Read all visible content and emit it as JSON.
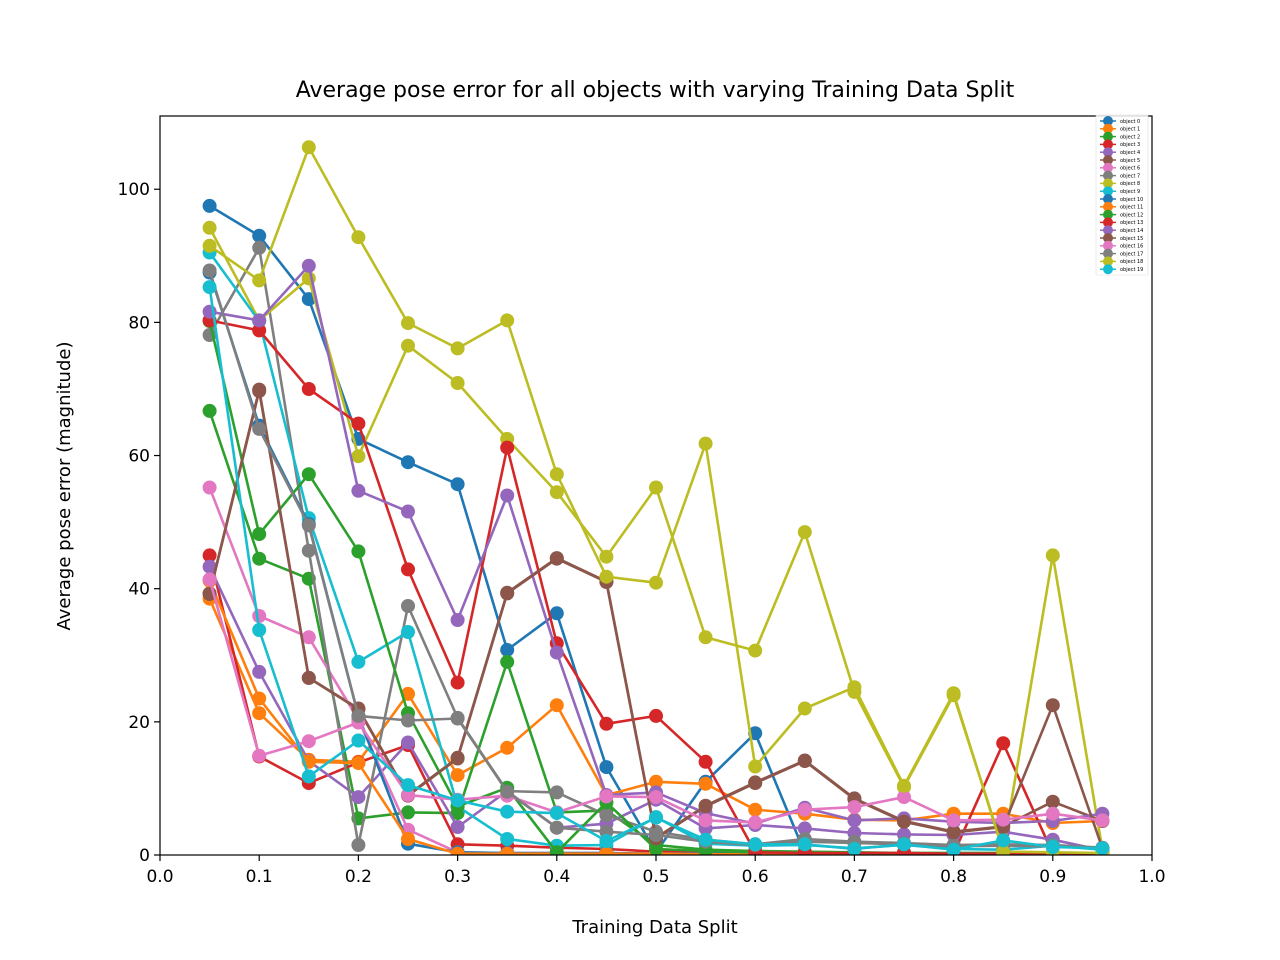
{
  "chart_data": {
    "type": "line",
    "title": "Average pose error for all objects with varying Training Data Split",
    "xlabel": "Training Data Split",
    "ylabel": "Average pose error (magnitude)",
    "xlim": [
      0.0,
      1.0
    ],
    "ylim": [
      0,
      111
    ],
    "xticks": [
      "0.0",
      "0.1",
      "0.2",
      "0.3",
      "0.4",
      "0.5",
      "0.6",
      "0.7",
      "0.8",
      "0.9",
      "1.0"
    ],
    "yticks": [
      "0",
      "20",
      "40",
      "60",
      "80",
      "100"
    ],
    "grid": false,
    "legend_position": "top-right",
    "x": [
      0.05,
      0.1,
      0.15,
      0.2,
      0.25,
      0.3,
      0.35,
      0.4,
      0.45,
      0.5,
      0.55,
      0.6,
      0.65,
      0.7,
      0.75,
      0.8,
      0.85,
      0.9,
      0.95
    ],
    "series": [
      {
        "name": "object 0",
        "color": "#1f77b4",
        "values": [
          97.5,
          93.0,
          83.5,
          62.5,
          59.0,
          55.7,
          30.8,
          36.3,
          13.2,
          0.4,
          11.0,
          18.3,
          0.3,
          0.3,
          0.2,
          0.2,
          0.2,
          0.2,
          0.1
        ]
      },
      {
        "name": "object 1",
        "color": "#ff7f0e",
        "values": [
          38.5,
          21.3,
          14.3,
          14.0,
          24.2,
          12.0,
          16.1,
          22.5,
          9.0,
          11.0,
          10.7,
          6.8,
          6.2,
          5.3,
          5.2,
          6.2,
          6.2,
          4.8,
          5.1
        ]
      },
      {
        "name": "object 2",
        "color": "#2ca02c",
        "values": [
          66.7,
          44.5,
          41.5,
          5.5,
          6.4,
          6.3,
          29.0,
          6.4,
          6.7,
          1.5,
          0.8,
          0.6,
          0.5,
          0.4,
          0.3,
          0.3,
          0.3,
          0.3,
          0.2
        ]
      },
      {
        "name": "object 3",
        "color": "#d62728",
        "values": [
          45.0,
          14.8,
          10.8,
          13.9,
          16.5,
          1.6,
          1.4,
          1.1,
          0.9,
          0.5,
          0.5,
          0.4,
          0.3,
          0.3,
          0.3,
          0.2,
          16.8,
          0.2,
          0.2
        ]
      },
      {
        "name": "object 4",
        "color": "#9467bd",
        "values": [
          43.3,
          27.5,
          14.1,
          8.7,
          16.9,
          4.2,
          9.6,
          4.1,
          4.7,
          8.3,
          4.0,
          4.5,
          4.0,
          3.3,
          3.1,
          3.0,
          3.5,
          2.3,
          0.7
        ]
      },
      {
        "name": "object 5",
        "color": "#8c564b",
        "values": [
          39.3,
          69.9,
          26.6,
          22.0,
          9.0,
          14.6,
          39.4,
          44.6,
          41.1,
          2.6,
          7.4,
          10.9,
          14.2,
          8.5,
          5.1,
          3.5,
          4.3,
          8.0,
          5.1
        ]
      },
      {
        "name": "object 6",
        "color": "#e377c2",
        "values": [
          55.2,
          35.9,
          32.7,
          20.3,
          3.8,
          0.4,
          0.3,
          0.3,
          0.3,
          0.2,
          0.2,
          0.2,
          0.2,
          0.2,
          0.2,
          0.2,
          0.2,
          0.2,
          0.1
        ]
      },
      {
        "name": "object 7",
        "color": "#7f7f7f",
        "values": [
          78.1,
          91.2,
          45.7,
          1.5,
          37.4,
          20.6,
          9.6,
          9.4,
          6.0,
          3.5,
          2.3,
          1.6,
          2.4,
          2.0,
          1.8,
          1.5,
          1.6,
          1.5,
          1.1
        ]
      },
      {
        "name": "object 8",
        "color": "#bcbd22",
        "values": [
          94.2,
          80.3,
          86.6,
          59.9,
          76.5,
          70.9,
          62.5,
          54.5,
          44.8,
          55.2,
          32.7,
          30.7,
          48.5,
          24.5,
          10.2,
          24.0,
          0.8,
          45.0,
          0.8
        ]
      },
      {
        "name": "object 9",
        "color": "#17becf",
        "values": [
          90.5,
          80.2,
          50.6,
          29.0,
          33.5,
          7.3,
          2.4,
          1.4,
          1.5,
          5.7,
          1.7,
          1.4,
          1.5,
          1.0,
          1.5,
          0.9,
          0.8,
          1.4,
          0.8
        ]
      },
      {
        "name": "object 10",
        "color": "#1f77b4",
        "values": [
          87.5,
          64.5,
          49.7,
          20.9,
          1.7,
          0.4,
          0.3,
          0.3,
          0.3,
          0.2,
          0.2,
          0.2,
          0.2,
          0.2,
          0.2,
          0.1,
          0.1,
          0.1,
          0.1
        ]
      },
      {
        "name": "object 11",
        "color": "#ff7f0e",
        "values": [
          41.2,
          23.5,
          14.0,
          13.8,
          2.4,
          0.2,
          0.2,
          0.2,
          0.2,
          0.2,
          0.1,
          0.1,
          0.1,
          0.1,
          0.1,
          0.1,
          0.1,
          0.1,
          0.1
        ]
      },
      {
        "name": "object 12",
        "color": "#2ca02c",
        "values": [
          80.2,
          48.2,
          57.2,
          45.6,
          21.3,
          7.3,
          10.1,
          0.4,
          7.9,
          0.9,
          0.6,
          0.4,
          0.4,
          0.3,
          0.3,
          0.3,
          0.3,
          0.2,
          0.2
        ]
      },
      {
        "name": "object 13",
        "color": "#d62728",
        "values": [
          80.3,
          78.8,
          70.0,
          64.8,
          42.9,
          25.9,
          61.2,
          31.8,
          19.7,
          20.9,
          14.0,
          0.4,
          0.3,
          0.3,
          0.3,
          0.2,
          0.2,
          0.2,
          0.2
        ]
      },
      {
        "name": "object 14",
        "color": "#9467bd",
        "values": [
          81.6,
          80.3,
          88.5,
          54.7,
          51.6,
          35.3,
          54.0,
          30.4,
          9.0,
          9.4,
          6.3,
          4.7,
          7.1,
          5.2,
          5.5,
          5.0,
          4.8,
          5.1,
          6.2
        ]
      },
      {
        "name": "object 15",
        "color": "#8c564b",
        "values": [
          39.2,
          69.7,
          26.6,
          21.9,
          8.9,
          14.5,
          39.3,
          44.5,
          41.0,
          2.5,
          7.3,
          10.8,
          14.1,
          8.4,
          5.0,
          3.4,
          4.2,
          22.5,
          1.0
        ]
      },
      {
        "name": "object 16",
        "color": "#e377c2",
        "values": [
          41.4,
          14.9,
          17.1,
          19.9,
          9.0,
          8.3,
          8.9,
          6.4,
          8.8,
          8.7,
          5.2,
          4.9,
          6.8,
          7.2,
          8.7,
          5.2,
          5.3,
          6.2,
          5.2
        ]
      },
      {
        "name": "object 17",
        "color": "#7f7f7f",
        "values": [
          87.8,
          64.0,
          49.5,
          20.9,
          20.2,
          20.5,
          9.5,
          4.1,
          3.5,
          3.0,
          2.0,
          1.5,
          2.0,
          1.8,
          1.6,
          1.3,
          1.4,
          1.3,
          1.0
        ]
      },
      {
        "name": "object 18",
        "color": "#bcbd22",
        "values": [
          91.5,
          86.3,
          106.3,
          92.8,
          79.9,
          76.1,
          80.3,
          57.2,
          41.8,
          40.9,
          61.8,
          13.3,
          22.0,
          25.2,
          10.4,
          24.3,
          0.5,
          0.4,
          0.3
        ]
      },
      {
        "name": "object 19",
        "color": "#17becf",
        "values": [
          85.3,
          33.8,
          11.8,
          17.2,
          10.5,
          8.2,
          6.5,
          6.3,
          2.1,
          5.6,
          2.3,
          1.6,
          1.6,
          0.9,
          1.6,
          0.8,
          2.2,
          1.2,
          1.0
        ]
      }
    ]
  }
}
